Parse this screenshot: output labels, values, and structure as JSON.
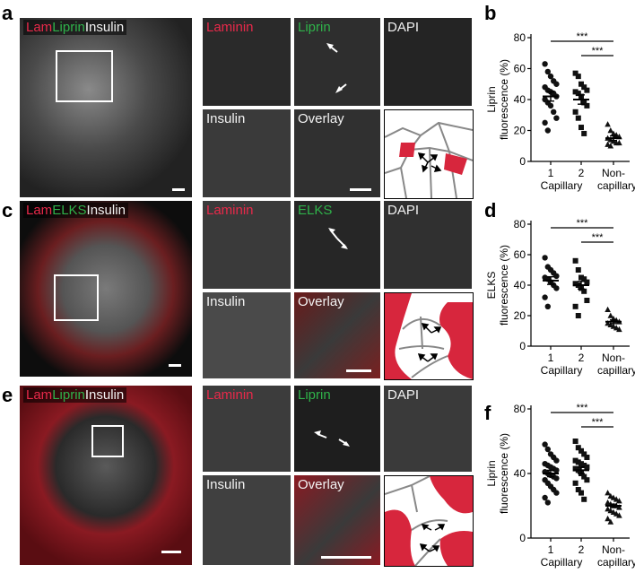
{
  "figure": {
    "rows": [
      {
        "letter": "a",
        "overview": {
          "parts": [
            {
              "text": "Lam",
              "color": "red"
            },
            {
              "text": "Liprin",
              "color": "green"
            },
            {
              "text": "Insulin",
              "color": "white"
            }
          ]
        },
        "tiles": [
          "Laminin",
          "Liprin",
          "DAPI",
          "Insulin",
          "Overlay"
        ],
        "tile_colors": [
          "red",
          "green",
          "white",
          "white",
          "white"
        ],
        "chart_letter": "b"
      },
      {
        "letter": "c",
        "overview": {
          "parts": [
            {
              "text": "Lam",
              "color": "red"
            },
            {
              "text": "ELKS",
              "color": "green"
            },
            {
              "text": "Insulin",
              "color": "white"
            }
          ]
        },
        "tiles": [
          "Laminin",
          "ELKS",
          "DAPI",
          "Insulin",
          "Overlay"
        ],
        "tile_colors": [
          "red",
          "green",
          "white",
          "white",
          "white"
        ],
        "chart_letter": "d"
      },
      {
        "letter": "e",
        "overview": {
          "parts": [
            {
              "text": "Lam",
              "color": "red"
            },
            {
              "text": "Liprin",
              "color": "green"
            },
            {
              "text": "Insulin",
              "color": "white"
            }
          ]
        },
        "tiles": [
          "Laminin",
          "Liprin",
          "DAPI",
          "Insulin",
          "Overlay"
        ],
        "tile_colors": [
          "red",
          "green",
          "white",
          "white",
          "white"
        ],
        "chart_letter": "f"
      }
    ],
    "colors": {
      "red": "#e8294a",
      "green": "#2fb24a",
      "white": "#f2f2f2",
      "laminin_fill": "#d7263d"
    }
  },
  "chart_data": [
    {
      "type": "scatter",
      "panel": "b",
      "ylabel": [
        "Liprin",
        "fluorescence (%)"
      ],
      "ylim": [
        0,
        80
      ],
      "yticks": [
        0,
        20,
        40,
        60,
        80
      ],
      "categories": [
        "1",
        "2",
        "Non-"
      ],
      "category_sub": [
        "Capillary",
        "",
        "capillary"
      ],
      "markers": [
        "circle",
        "square",
        "triangle"
      ],
      "significance": [
        "***",
        "***"
      ],
      "groups": [
        {
          "mean": 42,
          "sem": 3,
          "values": [
            63,
            58,
            55,
            52,
            50,
            48,
            46,
            45,
            44,
            42,
            40,
            38,
            36,
            32,
            28,
            25,
            20
          ]
        },
        {
          "mean": 40,
          "sem": 3,
          "values": [
            57,
            55,
            50,
            48,
            46,
            45,
            44,
            42,
            38,
            36,
            32,
            28,
            22,
            18
          ]
        },
        {
          "mean": 15,
          "sem": 1.5,
          "values": [
            24,
            20,
            18,
            17,
            16,
            15,
            14,
            13,
            12,
            12,
            11,
            10
          ]
        }
      ]
    },
    {
      "type": "scatter",
      "panel": "d",
      "ylabel": [
        "ELKS",
        "fluorescence (%)"
      ],
      "ylim": [
        0,
        80
      ],
      "yticks": [
        0,
        20,
        40,
        60,
        80
      ],
      "categories": [
        "1",
        "2",
        "Non-"
      ],
      "category_sub": [
        "Capillary",
        "",
        "capillary"
      ],
      "markers": [
        "circle",
        "square",
        "triangle"
      ],
      "significance": [
        "***",
        "***"
      ],
      "groups": [
        {
          "mean": 43,
          "sem": 2.5,
          "values": [
            58,
            52,
            50,
            48,
            46,
            45,
            44,
            42,
            40,
            38,
            32,
            26
          ]
        },
        {
          "mean": 40,
          "sem": 2.5,
          "values": [
            56,
            50,
            45,
            44,
            42,
            41,
            40,
            38,
            36,
            30,
            26,
            20
          ]
        },
        {
          "mean": 16,
          "sem": 1.2,
          "values": [
            24,
            20,
            18,
            17,
            16,
            15,
            14,
            13,
            12,
            11
          ]
        }
      ]
    },
    {
      "type": "scatter",
      "panel": "f",
      "ylabel": [
        "Liprin",
        "fluorescence (%)"
      ],
      "ylim": [
        0,
        80
      ],
      "yticks": [
        0,
        40,
        80
      ],
      "categories": [
        "1",
        "2",
        "Non-"
      ],
      "category_sub": [
        "Capillary",
        "",
        "capillary"
      ],
      "markers": [
        "circle",
        "square",
        "triangle"
      ],
      "significance": [
        "***",
        "***"
      ],
      "groups": [
        {
          "mean": 40,
          "sem": 2,
          "values": [
            58,
            55,
            52,
            50,
            48,
            46,
            45,
            44,
            43,
            42,
            41,
            40,
            39,
            38,
            37,
            36,
            34,
            32,
            30,
            28,
            25,
            22
          ]
        },
        {
          "mean": 42,
          "sem": 2,
          "values": [
            60,
            56,
            54,
            52,
            50,
            48,
            47,
            46,
            45,
            44,
            43,
            42,
            40,
            38,
            36,
            34,
            30,
            28,
            24
          ]
        },
        {
          "mean": 20,
          "sem": 1,
          "values": [
            28,
            26,
            25,
            24,
            23,
            22,
            21,
            20,
            20,
            19,
            18,
            17,
            16,
            15,
            14,
            12,
            10
          ]
        }
      ]
    }
  ]
}
